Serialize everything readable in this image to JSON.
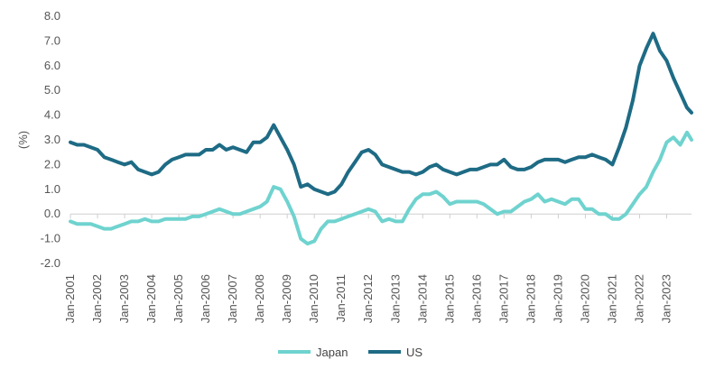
{
  "chart_data": {
    "type": "line",
    "title": "",
    "xlabel": "",
    "ylabel": "(%)",
    "ylim": [
      -2.0,
      8.0
    ],
    "y_ticks": [
      "8.0",
      "7.0",
      "6.0",
      "5.0",
      "4.0",
      "3.0",
      "2.0",
      "1.0",
      "0.0",
      "-1.0",
      "-2.0"
    ],
    "x_ticks": [
      "Jan-2001",
      "Jan-2002",
      "Jan-2003",
      "Jan-2004",
      "Jan-2005",
      "Jan-2006",
      "Jan-2007",
      "Jan-2008",
      "Jan-2009",
      "Jan-2010",
      "Jan-2011",
      "Jan-2012",
      "Jan-2013",
      "Jan-2014",
      "Jan-2015",
      "Jan-2016",
      "Jan-2017",
      "Jan-2018",
      "Jan-2019",
      "Jan-2020",
      "Jan-2021",
      "Jan-2022",
      "Jan-2023"
    ],
    "grid": false,
    "legend_position": "bottom-center",
    "series": [
      {
        "name": "Japan",
        "color": "#6fd3cf",
        "points": [
          [
            "2001-01",
            -0.3
          ],
          [
            "2001-04",
            -0.4
          ],
          [
            "2001-07",
            -0.4
          ],
          [
            "2001-10",
            -0.4
          ],
          [
            "2002-01",
            -0.5
          ],
          [
            "2002-04",
            -0.6
          ],
          [
            "2002-07",
            -0.6
          ],
          [
            "2002-10",
            -0.5
          ],
          [
            "2003-01",
            -0.4
          ],
          [
            "2003-04",
            -0.3
          ],
          [
            "2003-07",
            -0.3
          ],
          [
            "2003-10",
            -0.2
          ],
          [
            "2004-01",
            -0.3
          ],
          [
            "2004-04",
            -0.3
          ],
          [
            "2004-07",
            -0.2
          ],
          [
            "2004-10",
            -0.2
          ],
          [
            "2005-01",
            -0.2
          ],
          [
            "2005-04",
            -0.2
          ],
          [
            "2005-07",
            -0.1
          ],
          [
            "2005-10",
            -0.1
          ],
          [
            "2006-01",
            0.0
          ],
          [
            "2006-04",
            0.1
          ],
          [
            "2006-07",
            0.2
          ],
          [
            "2006-10",
            0.1
          ],
          [
            "2007-01",
            0.0
          ],
          [
            "2007-04",
            0.0
          ],
          [
            "2007-07",
            0.1
          ],
          [
            "2007-10",
            0.2
          ],
          [
            "2008-01",
            0.3
          ],
          [
            "2008-04",
            0.5
          ],
          [
            "2008-07",
            1.1
          ],
          [
            "2008-10",
            1.0
          ],
          [
            "2009-01",
            0.5
          ],
          [
            "2009-04",
            -0.1
          ],
          [
            "2009-07",
            -1.0
          ],
          [
            "2009-10",
            -1.2
          ],
          [
            "2010-01",
            -1.1
          ],
          [
            "2010-04",
            -0.6
          ],
          [
            "2010-07",
            -0.3
          ],
          [
            "2010-10",
            -0.3
          ],
          [
            "2011-01",
            -0.2
          ],
          [
            "2011-04",
            -0.1
          ],
          [
            "2011-07",
            0.0
          ],
          [
            "2011-10",
            0.1
          ],
          [
            "2012-01",
            0.2
          ],
          [
            "2012-04",
            0.1
          ],
          [
            "2012-07",
            -0.3
          ],
          [
            "2012-10",
            -0.2
          ],
          [
            "2013-01",
            -0.3
          ],
          [
            "2013-04",
            -0.3
          ],
          [
            "2013-07",
            0.2
          ],
          [
            "2013-10",
            0.6
          ],
          [
            "2014-01",
            0.8
          ],
          [
            "2014-04",
            0.8
          ],
          [
            "2014-07",
            0.9
          ],
          [
            "2014-10",
            0.7
          ],
          [
            "2015-01",
            0.4
          ],
          [
            "2015-04",
            0.5
          ],
          [
            "2015-07",
            0.5
          ],
          [
            "2015-10",
            0.5
          ],
          [
            "2016-01",
            0.5
          ],
          [
            "2016-04",
            0.4
          ],
          [
            "2016-07",
            0.2
          ],
          [
            "2016-10",
            0.0
          ],
          [
            "2017-01",
            0.1
          ],
          [
            "2017-04",
            0.1
          ],
          [
            "2017-07",
            0.3
          ],
          [
            "2017-10",
            0.5
          ],
          [
            "2018-01",
            0.6
          ],
          [
            "2018-04",
            0.8
          ],
          [
            "2018-07",
            0.5
          ],
          [
            "2018-10",
            0.6
          ],
          [
            "2019-01",
            0.5
          ],
          [
            "2019-04",
            0.4
          ],
          [
            "2019-07",
            0.6
          ],
          [
            "2019-10",
            0.6
          ],
          [
            "2020-01",
            0.2
          ],
          [
            "2020-04",
            0.2
          ],
          [
            "2020-07",
            0.0
          ],
          [
            "2020-10",
            0.0
          ],
          [
            "2021-01",
            -0.2
          ],
          [
            "2021-04",
            -0.2
          ],
          [
            "2021-07",
            0.0
          ],
          [
            "2021-10",
            0.4
          ],
          [
            "2022-01",
            0.8
          ],
          [
            "2022-04",
            1.1
          ],
          [
            "2022-07",
            1.7
          ],
          [
            "2022-10",
            2.2
          ],
          [
            "2023-01",
            2.9
          ],
          [
            "2023-04",
            3.1
          ],
          [
            "2023-07",
            2.8
          ],
          [
            "2023-10",
            3.3
          ],
          [
            "2023-12",
            3.0
          ]
        ]
      },
      {
        "name": "US",
        "color": "#1e6b85",
        "points": [
          [
            "2001-01",
            2.9
          ],
          [
            "2001-04",
            2.8
          ],
          [
            "2001-07",
            2.8
          ],
          [
            "2001-10",
            2.7
          ],
          [
            "2002-01",
            2.6
          ],
          [
            "2002-04",
            2.3
          ],
          [
            "2002-07",
            2.2
          ],
          [
            "2002-10",
            2.1
          ],
          [
            "2003-01",
            2.0
          ],
          [
            "2003-04",
            2.1
          ],
          [
            "2003-07",
            1.8
          ],
          [
            "2003-10",
            1.7
          ],
          [
            "2004-01",
            1.6
          ],
          [
            "2004-04",
            1.7
          ],
          [
            "2004-07",
            2.0
          ],
          [
            "2004-10",
            2.2
          ],
          [
            "2005-01",
            2.3
          ],
          [
            "2005-04",
            2.4
          ],
          [
            "2005-07",
            2.4
          ],
          [
            "2005-10",
            2.4
          ],
          [
            "2006-01",
            2.6
          ],
          [
            "2006-04",
            2.6
          ],
          [
            "2006-07",
            2.8
          ],
          [
            "2006-10",
            2.6
          ],
          [
            "2007-01",
            2.7
          ],
          [
            "2007-04",
            2.6
          ],
          [
            "2007-07",
            2.5
          ],
          [
            "2007-10",
            2.9
          ],
          [
            "2008-01",
            2.9
          ],
          [
            "2008-04",
            3.1
          ],
          [
            "2008-07",
            3.6
          ],
          [
            "2008-10",
            3.1
          ],
          [
            "2009-01",
            2.6
          ],
          [
            "2009-04",
            2.0
          ],
          [
            "2009-07",
            1.1
          ],
          [
            "2009-10",
            1.2
          ],
          [
            "2010-01",
            1.0
          ],
          [
            "2010-04",
            0.9
          ],
          [
            "2010-07",
            0.8
          ],
          [
            "2010-10",
            0.9
          ],
          [
            "2011-01",
            1.2
          ],
          [
            "2011-04",
            1.7
          ],
          [
            "2011-07",
            2.1
          ],
          [
            "2011-10",
            2.5
          ],
          [
            "2012-01",
            2.6
          ],
          [
            "2012-04",
            2.4
          ],
          [
            "2012-07",
            2.0
          ],
          [
            "2012-10",
            1.9
          ],
          [
            "2013-01",
            1.8
          ],
          [
            "2013-04",
            1.7
          ],
          [
            "2013-07",
            1.7
          ],
          [
            "2013-10",
            1.6
          ],
          [
            "2014-01",
            1.7
          ],
          [
            "2014-04",
            1.9
          ],
          [
            "2014-07",
            2.0
          ],
          [
            "2014-10",
            1.8
          ],
          [
            "2015-01",
            1.7
          ],
          [
            "2015-04",
            1.6
          ],
          [
            "2015-07",
            1.7
          ],
          [
            "2015-10",
            1.8
          ],
          [
            "2016-01",
            1.8
          ],
          [
            "2016-04",
            1.9
          ],
          [
            "2016-07",
            2.0
          ],
          [
            "2016-10",
            2.0
          ],
          [
            "2017-01",
            2.2
          ],
          [
            "2017-04",
            1.9
          ],
          [
            "2017-07",
            1.8
          ],
          [
            "2017-10",
            1.8
          ],
          [
            "2018-01",
            1.9
          ],
          [
            "2018-04",
            2.1
          ],
          [
            "2018-07",
            2.2
          ],
          [
            "2018-10",
            2.2
          ],
          [
            "2019-01",
            2.2
          ],
          [
            "2019-04",
            2.1
          ],
          [
            "2019-07",
            2.2
          ],
          [
            "2019-10",
            2.3
          ],
          [
            "2020-01",
            2.3
          ],
          [
            "2020-04",
            2.4
          ],
          [
            "2020-07",
            2.3
          ],
          [
            "2020-10",
            2.2
          ],
          [
            "2021-01",
            2.0
          ],
          [
            "2021-04",
            2.7
          ],
          [
            "2021-07",
            3.5
          ],
          [
            "2021-10",
            4.6
          ],
          [
            "2022-01",
            6.0
          ],
          [
            "2022-04",
            6.7
          ],
          [
            "2022-07",
            7.3
          ],
          [
            "2022-10",
            6.6
          ],
          [
            "2023-01",
            6.2
          ],
          [
            "2023-04",
            5.5
          ],
          [
            "2023-07",
            4.9
          ],
          [
            "2023-10",
            4.3
          ],
          [
            "2023-12",
            4.1
          ]
        ]
      }
    ]
  }
}
